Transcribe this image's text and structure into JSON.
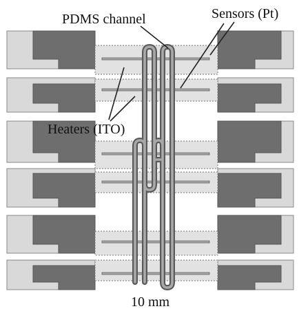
{
  "labels": {
    "pdms_channel": "PDMS channel",
    "sensors": "Sensors (Pt)",
    "heaters": "Heaters (ITO)",
    "scale": "10 mm"
  },
  "colors": {
    "background": "#ffffff",
    "pad_light": "#d9d9d9",
    "pad_dark": "#6e6e6e",
    "heater_strip": "#e2e2e2",
    "sensor_line": "#a8a8a8",
    "channel": "#5a5a5a"
  }
}
